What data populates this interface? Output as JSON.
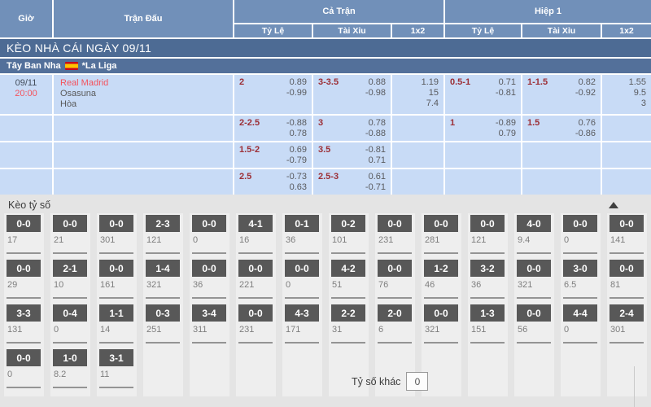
{
  "table_header": {
    "time_col": "Giờ",
    "match_col": "Trận Đấu",
    "full_match": "Cả Trận",
    "first_half": "Hiệp 1",
    "sub_cols": [
      "Tỷ Lệ",
      "Tài Xỉu",
      "1x2"
    ]
  },
  "title_bar": {
    "text": "KÈO NHÀ CÁI NGÀY 09/11"
  },
  "league_bar": {
    "country": "Tây Ban Nha",
    "flag_icon": "spain-flag",
    "league": "*La Liga"
  },
  "match": {
    "date": "09/11",
    "time": "20:00",
    "home": "Real Madrid",
    "away": "Osasuna",
    "draw": "Hòa"
  },
  "odds_rows": [
    {
      "ft_handicap": {
        "line": "2",
        "odds": [
          "0.89",
          "-0.99"
        ]
      },
      "ft_over_under": {
        "line": "3-3.5",
        "odds": [
          "0.88",
          "-0.98"
        ]
      },
      "ft_1x2": [
        "1.19",
        "15",
        "7.4"
      ],
      "h1_handicap": {
        "line": "0.5-1",
        "odds": [
          "0.71",
          "-0.81"
        ]
      },
      "h1_over_under": {
        "line": "1-1.5",
        "odds": [
          "0.82",
          "-0.92"
        ]
      },
      "h1_1x2": [
        "1.55",
        "9.5",
        "3"
      ]
    },
    {
      "ft_handicap": {
        "line": "2-2.5",
        "odds": [
          "-0.88",
          "0.78"
        ]
      },
      "ft_over_under": {
        "line": "3",
        "odds": [
          "0.78",
          "-0.88"
        ]
      },
      "ft_1x2": [],
      "h1_handicap": {
        "line": "1",
        "odds": [
          "-0.89",
          "0.79"
        ]
      },
      "h1_over_under": {
        "line": "1.5",
        "odds": [
          "0.76",
          "-0.86"
        ]
      },
      "h1_1x2": []
    },
    {
      "ft_handicap": {
        "line": "1.5-2",
        "odds": [
          "0.69",
          "-0.79"
        ]
      },
      "ft_over_under": {
        "line": "3.5",
        "odds": [
          "-0.81",
          "0.71"
        ]
      },
      "ft_1x2": [],
      "h1_handicap": null,
      "h1_over_under": null,
      "h1_1x2": []
    },
    {
      "ft_handicap": {
        "line": "2.5",
        "odds": [
          "-0.73",
          "0.63"
        ]
      },
      "ft_over_under": {
        "line": "2.5-3",
        "odds": [
          "0.61",
          "-0.71"
        ]
      },
      "ft_1x2": [],
      "h1_handicap": null,
      "h1_over_under": null,
      "h1_1x2": []
    }
  ],
  "score_section": {
    "title": "Kèo tỷ số",
    "collapse_icon": "triangle-up-icon",
    "rows": [
      [
        {
          "score": "0-0",
          "odds": "17"
        },
        {
          "score": "0-0",
          "odds": "21"
        },
        {
          "score": "0-0",
          "odds": "301"
        },
        {
          "score": "2-3",
          "odds": "121"
        },
        {
          "score": "0-0",
          "odds": "0"
        },
        {
          "score": "4-1",
          "odds": "16"
        },
        {
          "score": "0-1",
          "odds": "36"
        },
        {
          "score": "0-2",
          "odds": "101"
        },
        {
          "score": "0-0",
          "odds": "231"
        },
        {
          "score": "0-0",
          "odds": "281"
        },
        {
          "score": "0-0",
          "odds": "121"
        },
        {
          "score": "4-0",
          "odds": "9.4"
        },
        {
          "score": "0-0",
          "odds": "0"
        },
        {
          "score": "0-0",
          "odds": "141"
        }
      ],
      [
        {
          "score": "0-0",
          "odds": "29"
        },
        {
          "score": "2-1",
          "odds": "10"
        },
        {
          "score": "0-0",
          "odds": "161"
        },
        {
          "score": "1-4",
          "odds": "321"
        },
        {
          "score": "0-0",
          "odds": "36"
        },
        {
          "score": "0-0",
          "odds": "221"
        },
        {
          "score": "0-0",
          "odds": "0"
        },
        {
          "score": "4-2",
          "odds": "51"
        },
        {
          "score": "0-0",
          "odds": "76"
        },
        {
          "score": "1-2",
          "odds": "46"
        },
        {
          "score": "3-2",
          "odds": "36"
        },
        {
          "score": "0-0",
          "odds": "321"
        },
        {
          "score": "3-0",
          "odds": "6.5"
        },
        {
          "score": "0-0",
          "odds": "81"
        }
      ],
      [
        {
          "score": "3-3",
          "odds": "131"
        },
        {
          "score": "0-4",
          "odds": "0"
        },
        {
          "score": "1-1",
          "odds": "14"
        },
        {
          "score": "0-3",
          "odds": "251"
        },
        {
          "score": "3-4",
          "odds": "311"
        },
        {
          "score": "0-0",
          "odds": "231"
        },
        {
          "score": "4-3",
          "odds": "171"
        },
        {
          "score": "2-2",
          "odds": "31"
        },
        {
          "score": "2-0",
          "odds": "6"
        },
        {
          "score": "0-0",
          "odds": "321"
        },
        {
          "score": "1-3",
          "odds": "151"
        },
        {
          "score": "0-0",
          "odds": "56"
        },
        {
          "score": "4-4",
          "odds": "0"
        },
        {
          "score": "2-4",
          "odds": "301"
        }
      ],
      [
        {
          "score": "0-0",
          "odds": "0"
        },
        {
          "score": "1-0",
          "odds": "8.2"
        },
        {
          "score": "3-1",
          "odds": "11"
        },
        null,
        null,
        null,
        null,
        null,
        null,
        null,
        null,
        null,
        null,
        null
      ]
    ],
    "other_score": {
      "label": "Tỷ số khác",
      "value": "0"
    }
  },
  "colors": {
    "header_bg": "#7190b9",
    "title_bar_bg": "#4d6b94",
    "league_bar_bg": "#53709a",
    "row_bg": "#c8dbf6",
    "accent_red": "#f4525c",
    "handicap_red": "#9c2f36",
    "score_box_bg": "#585858",
    "section_bg": "#e4e4e4"
  }
}
